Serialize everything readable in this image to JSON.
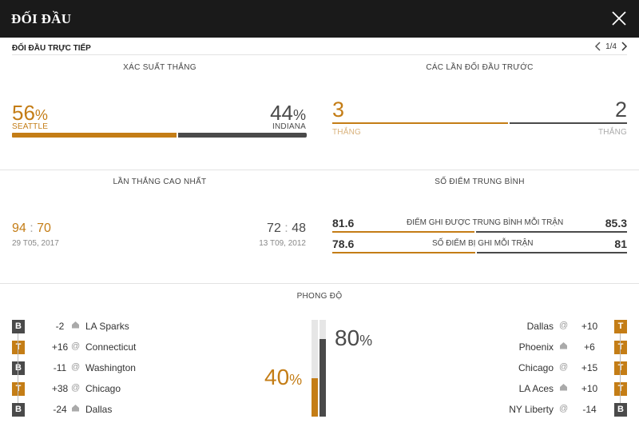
{
  "header": {
    "title": "ĐỐI ĐẦU"
  },
  "subbar": {
    "label": "ĐỐI ĐẦU TRỰC TIẾP",
    "page": "1/4"
  },
  "win_prob": {
    "title": "XÁC SUẤT THẮNG",
    "left": {
      "value": "56",
      "pct": "%",
      "team": "SEATTLE",
      "share": 0.56
    },
    "right": {
      "value": "44",
      "pct": "%",
      "team": "INDIANA",
      "share": 0.44
    }
  },
  "h2h": {
    "title": "CÁC LẦN ĐỐI ĐẦU TRƯỚC",
    "left": {
      "value": "3",
      "label": "THẮNG"
    },
    "right": {
      "value": "2",
      "label": "THẮNG"
    },
    "left_share": 0.6
  },
  "biggest_win": {
    "title": "LẦN THẮNG CAO NHẤT",
    "left": {
      "a": "94",
      "sep": ":",
      "b": "70",
      "date": "29 T05, 2017"
    },
    "right": {
      "a": "72",
      "sep": ":",
      "b": "48",
      "date": "13 T09, 2012"
    }
  },
  "averages": {
    "title": "SỐ ĐIỂM TRUNG BÌNH",
    "rows": [
      {
        "left": "81.6",
        "label": "ĐIỂM GHI ĐƯỢC TRUNG BÌNH MỖI TRẬN",
        "right": "85.3"
      },
      {
        "left": "78.6",
        "label": "SỐ ĐIỂM BỊ GHI MỖI TRẬN",
        "right": "81"
      }
    ]
  },
  "form": {
    "title": "PHONG ĐỘ",
    "left_pct": {
      "value": "40",
      "pct": "%",
      "share": 0.4
    },
    "right_pct": {
      "value": "80",
      "pct": "%",
      "share": 0.8
    },
    "left": [
      {
        "result": "B",
        "diff": "-2",
        "venue": "home",
        "team": "LA Sparks"
      },
      {
        "result": "T",
        "diff": "+16",
        "venue": "away",
        "team": "Connecticut"
      },
      {
        "result": "B",
        "diff": "-11",
        "venue": "away",
        "team": "Washington"
      },
      {
        "result": "T",
        "diff": "+38",
        "venue": "away",
        "team": "Chicago"
      },
      {
        "result": "B",
        "diff": "-24",
        "venue": "home",
        "team": "Dallas"
      }
    ],
    "right": [
      {
        "result": "T",
        "diff": "+10",
        "venue": "away",
        "team": "Dallas"
      },
      {
        "result": "T",
        "diff": "+6",
        "venue": "home",
        "team": "Phoenix"
      },
      {
        "result": "T",
        "diff": "+15",
        "venue": "away",
        "team": "Chicago"
      },
      {
        "result": "T",
        "diff": "+10",
        "venue": "home",
        "team": "LA Aces"
      },
      {
        "result": "B",
        "diff": "-14",
        "venue": "away",
        "team": "NY Liberty"
      }
    ]
  },
  "colors": {
    "accent": "#c47d16",
    "dark": "#4a4a4a",
    "header": "#1a1a1a"
  }
}
